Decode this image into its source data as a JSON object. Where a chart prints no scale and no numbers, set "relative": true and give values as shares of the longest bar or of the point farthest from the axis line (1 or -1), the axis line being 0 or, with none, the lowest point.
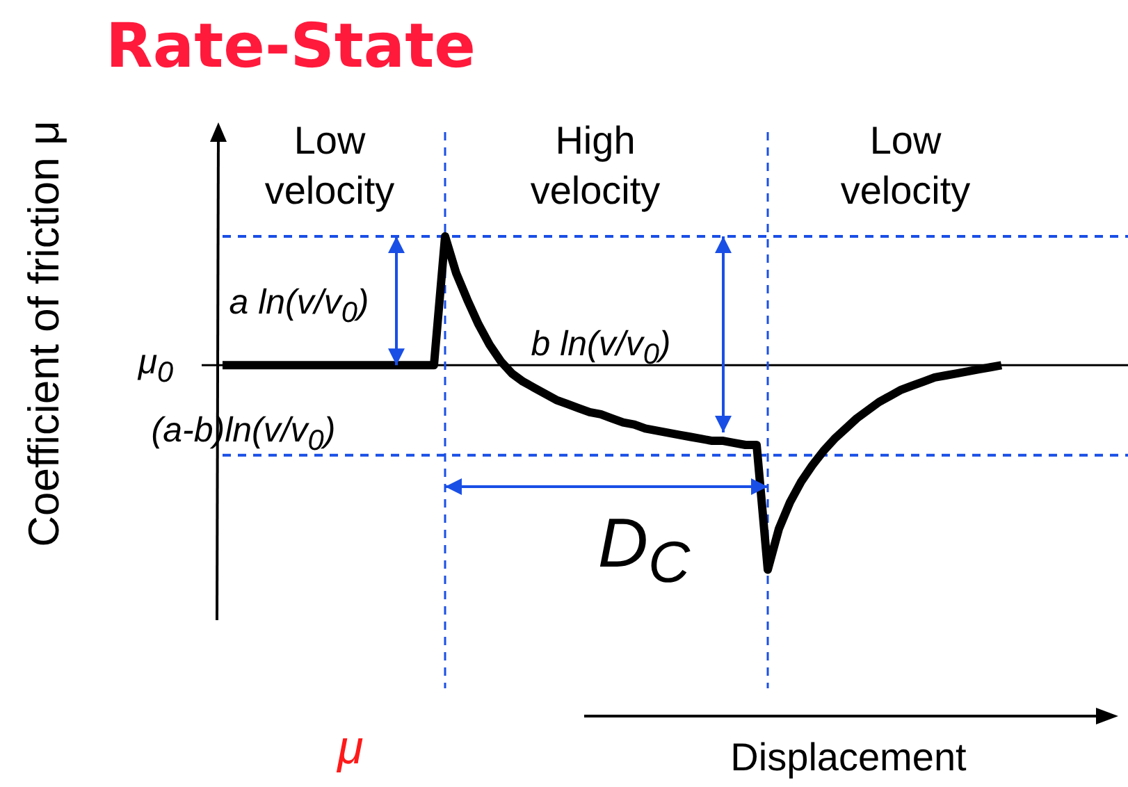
{
  "chart_data": {
    "type": "line",
    "title": "Rate-State",
    "xlabel": "Displacement",
    "ylabel": "Coefficient of friction μ",
    "relative": true,
    "legend": false,
    "marker": "none",
    "line_style": "solid",
    "categories": [
      null,
      null,
      null,
      null,
      null,
      null,
      null,
      null,
      null,
      null,
      null,
      null,
      null,
      null,
      null,
      null,
      null,
      null,
      null,
      null,
      null,
      null,
      null,
      null,
      null,
      null,
      null,
      null,
      null,
      null,
      null,
      null,
      null,
      null,
      null,
      null,
      null,
      null,
      null,
      null,
      null,
      null,
      null,
      null,
      null,
      null,
      null,
      null,
      null,
      null,
      null,
      null,
      null,
      null,
      null,
      null,
      null,
      null,
      null,
      null,
      null,
      null,
      null,
      null,
      null,
      null,
      null,
      null,
      null,
      null,
      null
    ],
    "series": [
      {
        "color": "#000000",
        "values": [
          0,
          0,
          0,
          0,
          0,
          0,
          0,
          0,
          0,
          0,
          0,
          0,
          0,
          0,
          0,
          0,
          0,
          0,
          0,
          0,
          0.63,
          0.45,
          0.32,
          0.2,
          0.1,
          0.02,
          -0.04,
          -0.08,
          -0.11,
          -0.14,
          -0.17,
          -0.19,
          -0.21,
          -0.23,
          -0.24,
          -0.26,
          -0.28,
          -0.29,
          -0.31,
          -0.32,
          -0.33,
          -0.34,
          -0.35,
          -0.36,
          -0.37,
          -0.37,
          -0.38,
          -0.39,
          -0.39,
          -1,
          -0.8,
          -0.67,
          -0.57,
          -0.49,
          -0.42,
          -0.36,
          -0.31,
          -0.26,
          -0.22,
          -0.18,
          -0.15,
          -0.12,
          -0.1,
          -0.08,
          -0.06,
          -0.05,
          -0.04,
          -0.03,
          -0.02,
          -0.01,
          0
        ]
      }
    ],
    "ref_lines": [
      {
        "axis": "y",
        "value": 0.63,
        "color": "#1a4fe6",
        "line_style": "dashed"
      },
      {
        "axis": "y",
        "value": -0.44,
        "color": "#1a4fe6",
        "line_style": "dashed"
      }
    ],
    "annotations": [
      "Low velocity",
      "High velocity",
      "Low velocity",
      "a ln(v/v$_{0}$)",
      "μ$_{0}$",
      "b ln(v/v$_{0}$)",
      "(a-b)ln(v/v$_{0}$)",
      "D$_{C}$",
      "μ"
    ]
  }
}
